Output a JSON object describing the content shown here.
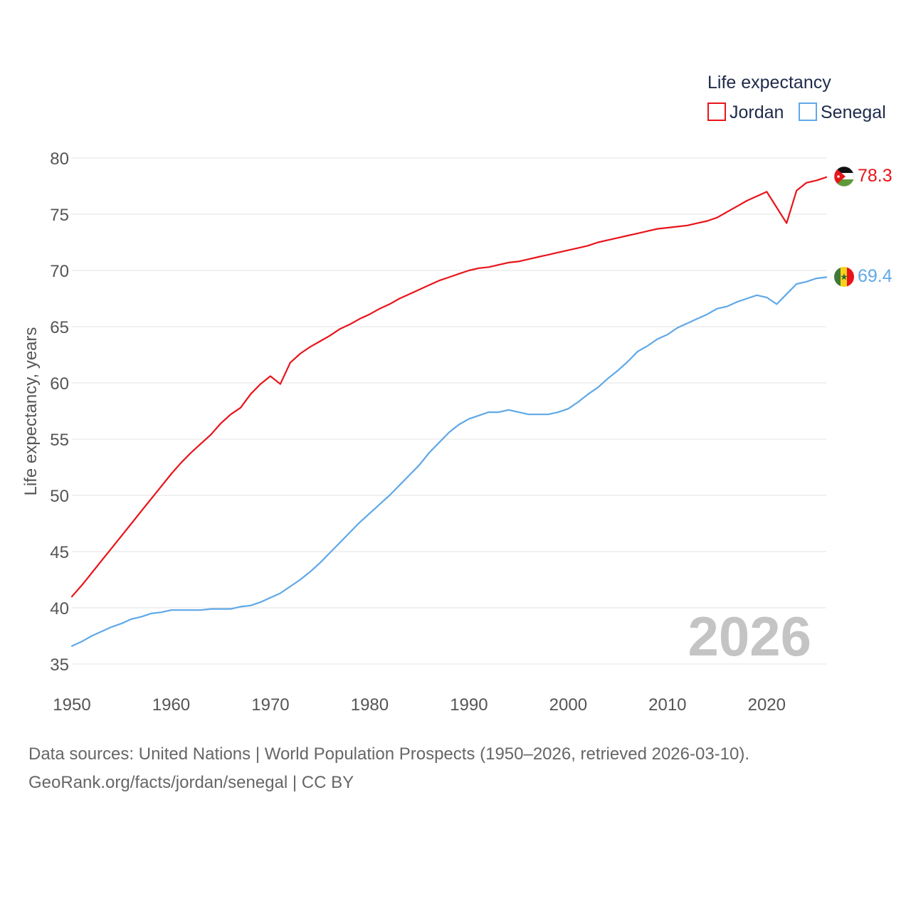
{
  "chart_data": {
    "type": "line",
    "title": "",
    "xlabel": "",
    "ylabel": "Life expectancy, years",
    "xlim": [
      1950,
      2026
    ],
    "ylim": [
      35,
      80
    ],
    "x_ticks": [
      1950,
      1960,
      1970,
      1980,
      1990,
      2000,
      2010,
      2020
    ],
    "y_ticks": [
      35,
      40,
      45,
      50,
      55,
      60,
      65,
      70,
      75,
      80
    ],
    "grid": true,
    "legend_title": "Life expectancy",
    "legend_position": "top-right",
    "watermark_year": "2026",
    "x": [
      1950,
      1951,
      1952,
      1953,
      1954,
      1955,
      1956,
      1957,
      1958,
      1959,
      1960,
      1961,
      1962,
      1963,
      1964,
      1965,
      1966,
      1967,
      1968,
      1969,
      1970,
      1971,
      1972,
      1973,
      1974,
      1975,
      1976,
      1977,
      1978,
      1979,
      1980,
      1981,
      1982,
      1983,
      1984,
      1985,
      1986,
      1987,
      1988,
      1989,
      1990,
      1991,
      1992,
      1993,
      1994,
      1995,
      1996,
      1997,
      1998,
      1999,
      2000,
      2001,
      2002,
      2003,
      2004,
      2005,
      2006,
      2007,
      2008,
      2009,
      2010,
      2011,
      2012,
      2013,
      2014,
      2015,
      2016,
      2017,
      2018,
      2019,
      2020,
      2021,
      2022,
      2023,
      2024,
      2025,
      2026
    ],
    "series": [
      {
        "name": "Jordan",
        "color": "#e8141a",
        "end_label": "78.3",
        "flag": "jordan-flag",
        "values": [
          41.0,
          42.0,
          43.1,
          44.2,
          45.3,
          46.4,
          47.5,
          48.6,
          49.7,
          50.8,
          51.9,
          52.9,
          53.8,
          54.6,
          55.4,
          56.4,
          57.2,
          57.8,
          59.0,
          59.9,
          60.6,
          59.9,
          61.8,
          62.6,
          63.2,
          63.7,
          64.2,
          64.8,
          65.2,
          65.7,
          66.1,
          66.6,
          67.0,
          67.5,
          67.9,
          68.3,
          68.7,
          69.1,
          69.4,
          69.7,
          70.0,
          70.2,
          70.3,
          70.5,
          70.7,
          70.8,
          71.0,
          71.2,
          71.4,
          71.6,
          71.8,
          72.0,
          72.2,
          72.5,
          72.7,
          72.9,
          73.1,
          73.3,
          73.5,
          73.7,
          73.8,
          73.9,
          74.0,
          74.2,
          74.4,
          74.7,
          75.2,
          75.7,
          76.2,
          76.6,
          77.0,
          75.6,
          74.2,
          77.1,
          77.8,
          78.0,
          78.3
        ]
      },
      {
        "name": "Senegal",
        "color": "#5fa8e8",
        "end_label": "69.4",
        "flag": "senegal-flag",
        "values": [
          36.6,
          37.0,
          37.5,
          37.9,
          38.3,
          38.6,
          39.0,
          39.2,
          39.5,
          39.6,
          39.8,
          39.8,
          39.8,
          39.8,
          39.9,
          39.9,
          39.9,
          40.1,
          40.2,
          40.5,
          40.9,
          41.3,
          41.9,
          42.5,
          43.2,
          44.0,
          44.9,
          45.8,
          46.7,
          47.6,
          48.4,
          49.2,
          50.0,
          50.9,
          51.8,
          52.7,
          53.8,
          54.7,
          55.6,
          56.3,
          56.8,
          57.1,
          57.4,
          57.4,
          57.6,
          57.4,
          57.2,
          57.2,
          57.2,
          57.4,
          57.7,
          58.3,
          59.0,
          59.6,
          60.4,
          61.1,
          61.9,
          62.8,
          63.3,
          63.9,
          64.3,
          64.9,
          65.3,
          65.7,
          66.1,
          66.6,
          66.8,
          67.2,
          67.5,
          67.8,
          67.6,
          67.0,
          67.9,
          68.8,
          69.0,
          69.3,
          69.4
        ]
      }
    ]
  },
  "footer": {
    "line1": "Data sources: United Nations | World Population Prospects (1950–2026, retrieved 2026-03-10).",
    "line2": "GeoRank.org/facts/jordan/senegal | CC BY"
  }
}
